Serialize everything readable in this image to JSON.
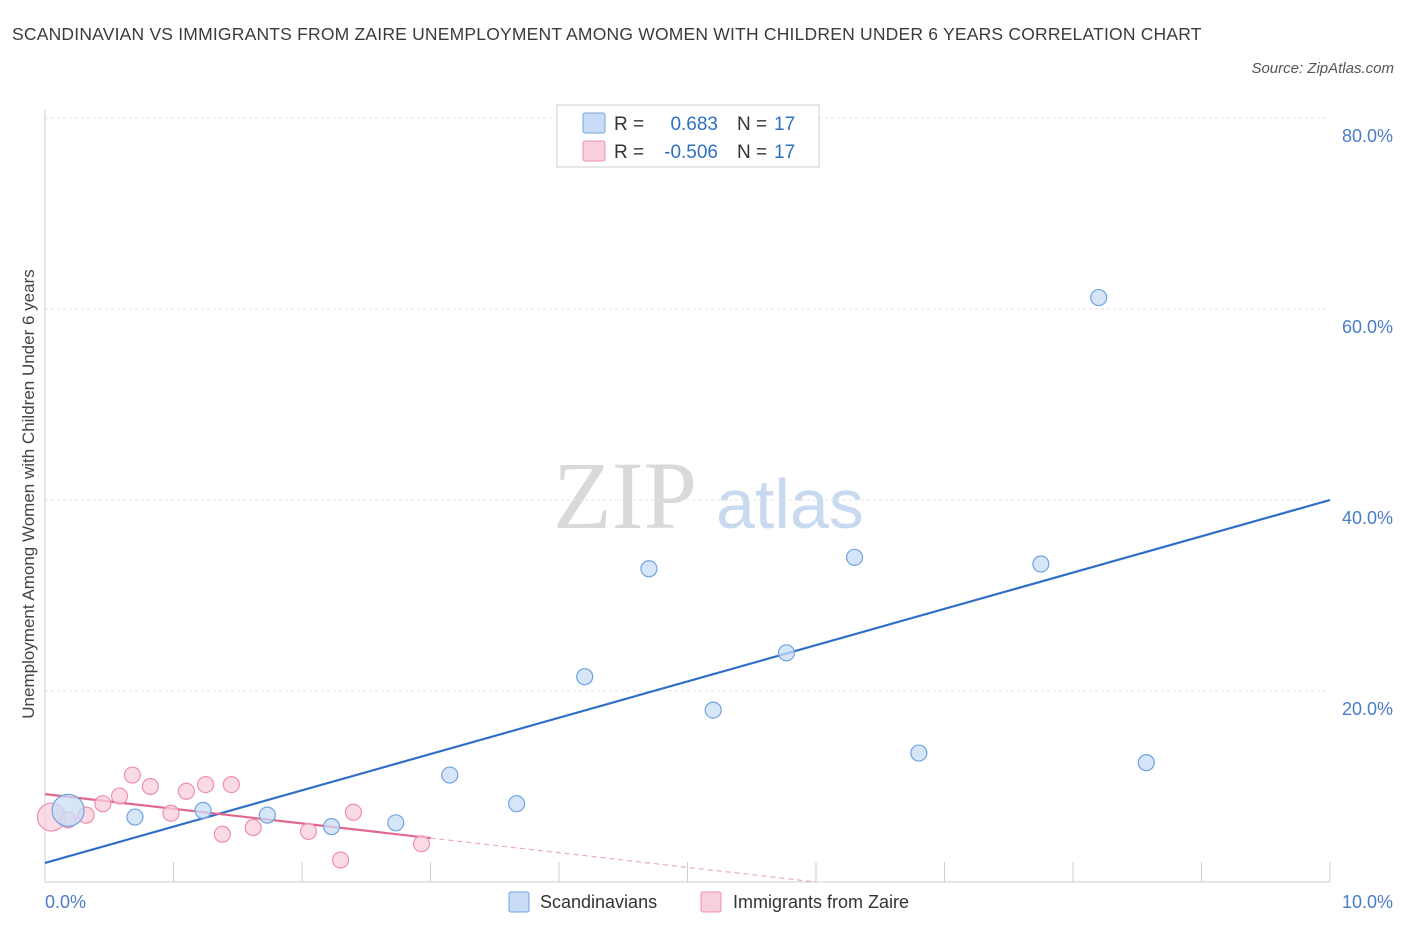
{
  "title": "SCANDINAVIAN VS IMMIGRANTS FROM ZAIRE UNEMPLOYMENT AMONG WOMEN WITH CHILDREN UNDER 6 YEARS CORRELATION CHART",
  "source": "Source: ZipAtlas.com",
  "watermark": {
    "zip": "ZIP",
    "atlas": "atlas"
  },
  "legend": {
    "r_label": "R =",
    "n_label": "N =",
    "rows": [
      {
        "name": "Scandinavians",
        "r": "0.683",
        "n": "17",
        "color": "#9dc3ee"
      },
      {
        "name": "Immigrants from Zaire",
        "r": "-0.506",
        "n": "17",
        "color": "#f4b6c8"
      }
    ]
  },
  "chart_data": {
    "type": "scatter",
    "title": "SCANDINAVIAN VS IMMIGRANTS FROM ZAIRE UNEMPLOYMENT AMONG WOMEN WITH CHILDREN UNDER 6 YEARS CORRELATION CHART",
    "xlabel": "",
    "ylabel": "Unemployment Among Women with Children Under 6 years",
    "xlim": [
      0,
      10
    ],
    "ylim": [
      0,
      80
    ],
    "x_tick_labels": [
      "0.0%",
      "10.0%"
    ],
    "y_ticks": [
      20,
      40,
      60,
      80
    ],
    "y_tick_labels": [
      "20.0%",
      "40.0%",
      "60.0%",
      "80.0%"
    ],
    "series": [
      {
        "name": "Scandinavians",
        "color": "#6fa3e0",
        "fill": "#c8dcf5",
        "points": [
          {
            "x": 0.18,
            "y": 7.5,
            "size": "large"
          },
          {
            "x": 0.7,
            "y": 6.8
          },
          {
            "x": 1.23,
            "y": 7.5
          },
          {
            "x": 1.73,
            "y": 7.0
          },
          {
            "x": 2.23,
            "y": 5.8
          },
          {
            "x": 2.73,
            "y": 6.2
          },
          {
            "x": 3.15,
            "y": 11.2
          },
          {
            "x": 3.67,
            "y": 8.2
          },
          {
            "x": 4.2,
            "y": 21.5
          },
          {
            "x": 4.7,
            "y": 32.8
          },
          {
            "x": 5.2,
            "y": 18.0
          },
          {
            "x": 5.77,
            "y": 24.0
          },
          {
            "x": 6.3,
            "y": 34.0
          },
          {
            "x": 6.8,
            "y": 13.5
          },
          {
            "x": 7.75,
            "y": 33.3
          },
          {
            "x": 8.2,
            "y": 61.2
          },
          {
            "x": 8.57,
            "y": 12.5
          }
        ],
        "trend": {
          "x1": 0,
          "y1": 2.0,
          "x2": 10,
          "y2": 40.0
        }
      },
      {
        "name": "Immigrants from Zaire",
        "color": "#ef8fae",
        "fill": "#f8cfdc",
        "points": [
          {
            "x": 0.05,
            "y": 6.8,
            "size": "large"
          },
          {
            "x": 0.18,
            "y": 6.5
          },
          {
            "x": 0.32,
            "y": 7.0
          },
          {
            "x": 0.45,
            "y": 8.2
          },
          {
            "x": 0.58,
            "y": 9.0
          },
          {
            "x": 0.68,
            "y": 11.2
          },
          {
            "x": 0.82,
            "y": 10.0
          },
          {
            "x": 0.98,
            "y": 7.2
          },
          {
            "x": 1.1,
            "y": 9.5
          },
          {
            "x": 1.25,
            "y": 10.2
          },
          {
            "x": 1.38,
            "y": 5.0
          },
          {
            "x": 1.45,
            "y": 10.2
          },
          {
            "x": 1.62,
            "y": 5.7
          },
          {
            "x": 2.05,
            "y": 5.3
          },
          {
            "x": 2.3,
            "y": 2.3
          },
          {
            "x": 2.4,
            "y": 7.3
          },
          {
            "x": 2.93,
            "y": 4.0
          }
        ],
        "trend": {
          "x1": 0,
          "y1": 9.2,
          "x2": 3.0,
          "y2": 4.6
        },
        "trend_extension": {
          "x1": 3.0,
          "y1": 4.6,
          "x2": 6.0,
          "y2": 0
        }
      }
    ]
  }
}
